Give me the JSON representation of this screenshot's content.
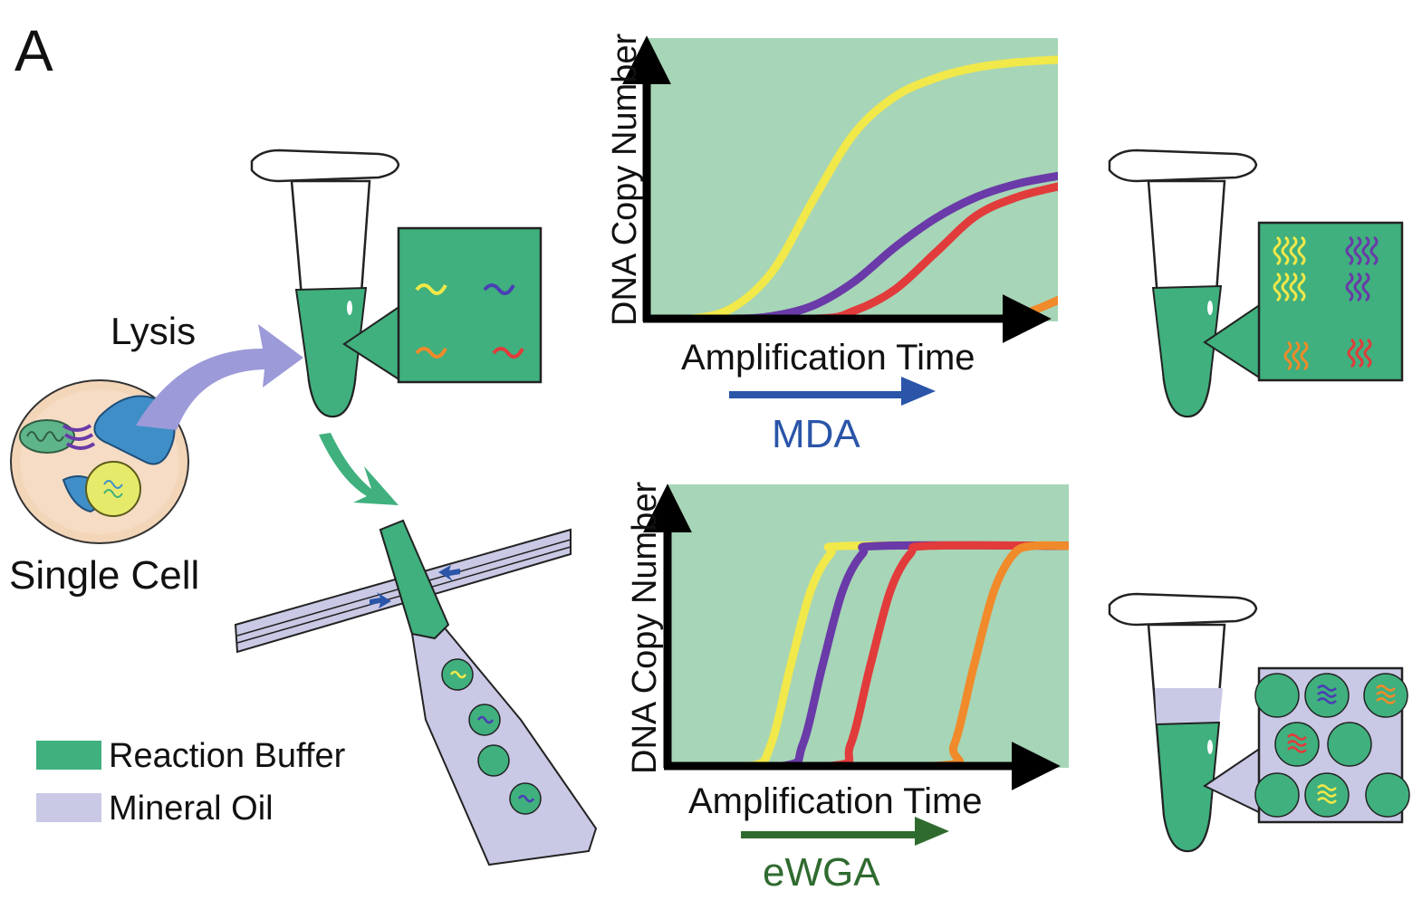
{
  "panel_label": "A",
  "steps": {
    "lysis": "Lysis",
    "single_cell": "Single Cell"
  },
  "legend": [
    {
      "label": "Reaction Buffer",
      "color": "#3fb07e"
    },
    {
      "label": "Mineral Oil",
      "color": "#c9c9e6"
    }
  ],
  "methods": {
    "mda": {
      "label": "MDA",
      "color": "#2a55a8"
    },
    "ewga": {
      "label": "eWGA",
      "color": "#2f6b2f"
    }
  },
  "colors": {
    "buffer": "#3fb07e",
    "plot_bg": "#a7d5b7",
    "oil": "#c9c9e6",
    "yellow": "#f1e84a",
    "purple": "#6a3aa8",
    "red": "#e23b3b",
    "orange": "#f08a2a",
    "blue_dna": "#4a3fb5"
  },
  "chart_data": [
    {
      "type": "line",
      "method": "MDA",
      "xlabel": "Amplification Time",
      "ylabel": "DNA Copy Number",
      "xlim": [
        0,
        1
      ],
      "ylim": [
        0,
        1
      ],
      "series": [
        {
          "color": "yellow",
          "x": [
            0,
            0.1,
            0.2,
            0.3,
            0.4,
            0.5,
            0.6,
            0.7,
            0.8,
            0.9,
            1.0
          ],
          "y": [
            0,
            0.0,
            0.04,
            0.18,
            0.45,
            0.7,
            0.84,
            0.91,
            0.95,
            0.97,
            0.98
          ]
        },
        {
          "color": "purple",
          "x": [
            0,
            0.2,
            0.3,
            0.4,
            0.5,
            0.6,
            0.7,
            0.8,
            0.9,
            1.0
          ],
          "y": [
            0,
            0.0,
            0.01,
            0.05,
            0.14,
            0.27,
            0.38,
            0.46,
            0.51,
            0.54
          ]
        },
        {
          "color": "red",
          "x": [
            0,
            0.4,
            0.5,
            0.6,
            0.7,
            0.8,
            0.9,
            1.0
          ],
          "y": [
            0,
            0.0,
            0.03,
            0.11,
            0.25,
            0.39,
            0.46,
            0.5
          ]
        },
        {
          "color": "orange",
          "x": [
            0,
            0.85,
            0.92,
            1.0
          ],
          "y": [
            0,
            0.0,
            0.02,
            0.07
          ]
        }
      ]
    },
    {
      "type": "line",
      "method": "eWGA",
      "xlabel": "Amplification Time",
      "ylabel": "DNA Copy Number",
      "xlim": [
        0,
        1
      ],
      "ylim": [
        0,
        1
      ],
      "series": [
        {
          "color": "yellow",
          "x": [
            0,
            0.2,
            0.25,
            0.3,
            0.35,
            0.4,
            0.45,
            1.0
          ],
          "y": [
            0,
            0.0,
            0.08,
            0.38,
            0.66,
            0.8,
            0.83,
            0.83
          ]
        },
        {
          "color": "purple",
          "x": [
            0,
            0.28,
            0.33,
            0.38,
            0.43,
            0.48,
            0.53,
            1.0
          ],
          "y": [
            0,
            0.0,
            0.08,
            0.38,
            0.66,
            0.8,
            0.83,
            0.83
          ]
        },
        {
          "color": "red",
          "x": [
            0,
            0.4,
            0.45,
            0.5,
            0.55,
            0.6,
            0.65,
            1.0
          ],
          "y": [
            0,
            0.0,
            0.08,
            0.38,
            0.66,
            0.8,
            0.83,
            0.83
          ]
        },
        {
          "color": "orange",
          "x": [
            0,
            0.66,
            0.71,
            0.76,
            0.81,
            0.86,
            0.91,
            1.0
          ],
          "y": [
            0,
            0.0,
            0.08,
            0.38,
            0.66,
            0.8,
            0.83,
            0.83
          ]
        }
      ]
    }
  ]
}
